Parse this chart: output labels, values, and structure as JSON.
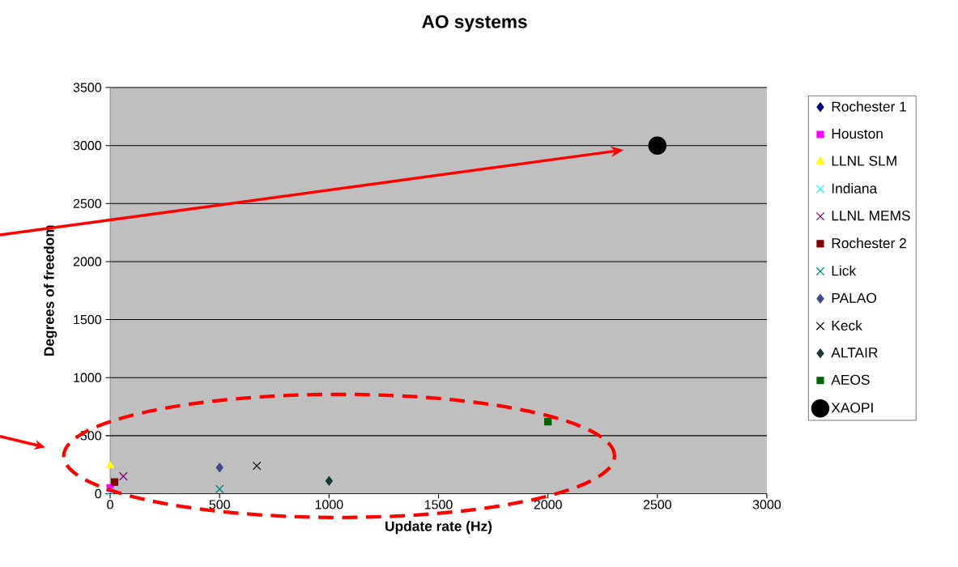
{
  "chart_data": {
    "type": "scatter",
    "title": "AO systems",
    "xlabel": "Update rate (Hz)",
    "ylabel": "Degrees of freedom",
    "xlim": [
      0,
      3000
    ],
    "xticks": [
      0,
      500,
      1000,
      1500,
      2000,
      2500,
      3000
    ],
    "ylim": [
      0,
      3500
    ],
    "yticks": [
      0,
      500,
      1000,
      1500,
      2000,
      2500,
      3000,
      3500
    ],
    "grid": "y",
    "legend": "right",
    "series": [
      {
        "name": "Rochester 1",
        "color": "#000080",
        "marker": "diamond",
        "x": [
          null
        ],
        "values": [
          null
        ]
      },
      {
        "name": "Houston",
        "color": "#ff00ff",
        "marker": "square",
        "x": [
          0
        ],
        "values": [
          50
        ]
      },
      {
        "name": "LLNL SLM",
        "color": "#ffff00",
        "marker": "triangle",
        "x": [
          0
        ],
        "values": [
          240
        ]
      },
      {
        "name": "Indiana",
        "color": "#00ffff",
        "marker": "cross",
        "x": [
          0
        ],
        "values": [
          20
        ]
      },
      {
        "name": "LLNL MEMS",
        "color": "#800080",
        "marker": "cross",
        "x": [
          60
        ],
        "values": [
          150
        ]
      },
      {
        "name": "Rochester 2",
        "color": "#800000",
        "marker": "square",
        "x": [
          20
        ],
        "values": [
          100
        ]
      },
      {
        "name": "Lick",
        "color": "#008080",
        "marker": "cross",
        "x": [
          500
        ],
        "values": [
          40
        ]
      },
      {
        "name": "PALAO",
        "color": "#3a4a8a",
        "marker": "diamond",
        "x": [
          500
        ],
        "values": [
          225
        ]
      },
      {
        "name": "Keck",
        "color": "#000000",
        "marker": "cross",
        "x": [
          670
        ],
        "values": [
          240
        ]
      },
      {
        "name": "ALTAIR",
        "color": "#1a3a3a",
        "marker": "diamond",
        "x": [
          1000
        ],
        "values": [
          110
        ]
      },
      {
        "name": "AEOS",
        "color": "#006400",
        "marker": "square",
        "x": [
          2000
        ],
        "values": [
          620
        ]
      },
      {
        "name": "XAOPI",
        "color": "#000000",
        "marker": "circle",
        "x": [
          2500
        ],
        "values": [
          3000
        ]
      }
    ]
  }
}
